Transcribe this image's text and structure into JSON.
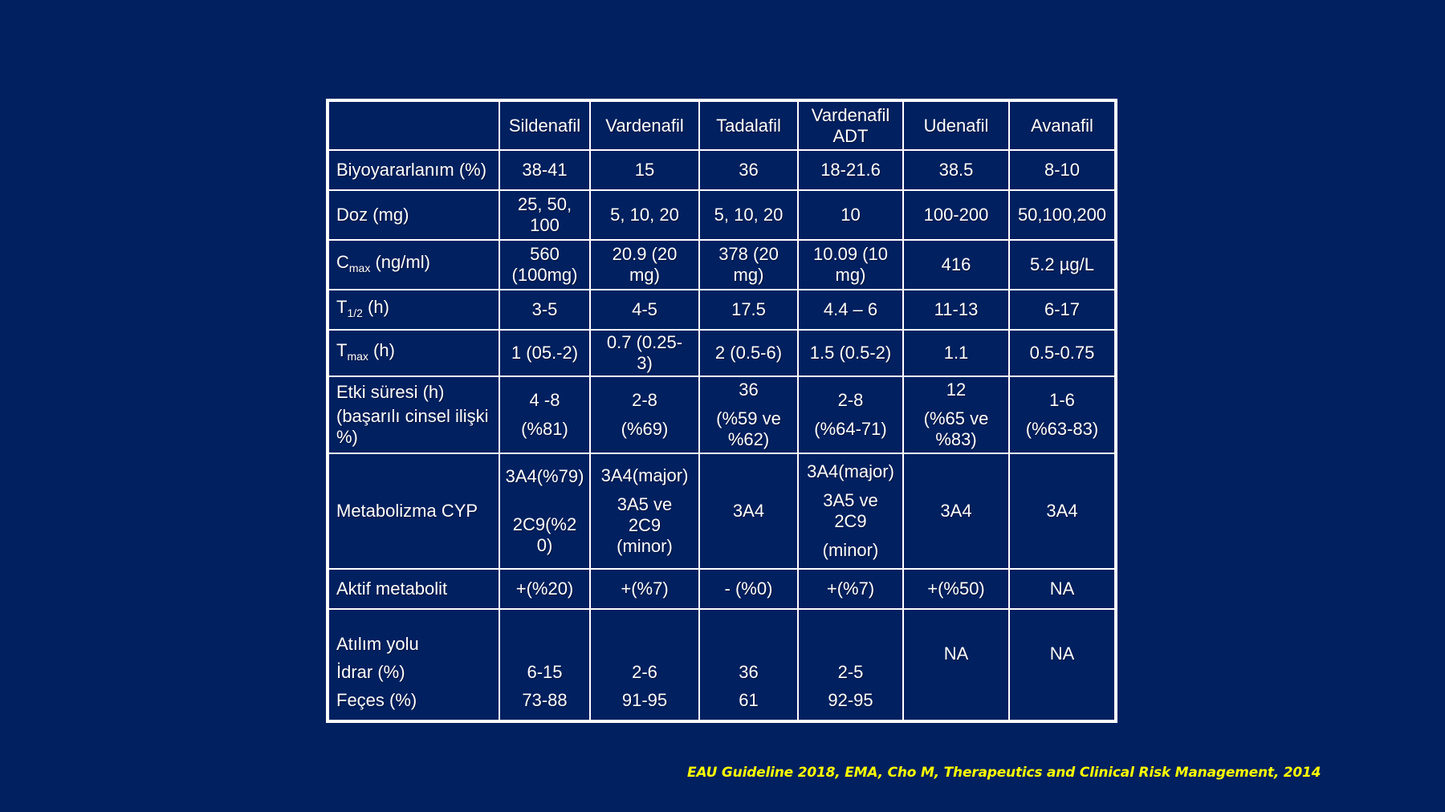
{
  "table": {
    "headers": [
      "",
      "Sildenafil",
      "Vardenafil",
      "Tadalafil",
      "Vardenafil ADT",
      "Udenafil",
      "Avanafil"
    ],
    "rows": {
      "bioavailability": {
        "label": "Biyoyararlanım (%)",
        "cells": [
          "38-41",
          "15",
          "36",
          "18-21.6",
          "38.5",
          "8-10"
        ]
      },
      "dose": {
        "label": "Doz (mg)",
        "cells": [
          "25, 50, 100",
          "5, 10, 20",
          "5, 10, 20",
          "10",
          "100-200",
          "50,100,200"
        ]
      },
      "cmax": {
        "label_main": "C",
        "label_sub": "max",
        "label_unit": " (ng/ml)",
        "cells": [
          "560 (100mg)",
          "20.9 (20 mg)",
          "378 (20 mg)",
          "10.09 (10 mg)",
          "416",
          "5.2 µg/L"
        ]
      },
      "thalf": {
        "label_main": "T",
        "label_sub": "1/2",
        "label_unit": " (h)",
        "cells": [
          "3-5",
          "4-5",
          "17.5",
          "4.4 – 6",
          "11-13",
          "6-17"
        ]
      },
      "tmax": {
        "label_main": "T",
        "label_sub": "max",
        "label_unit": " (h)",
        "cells": [
          "1 (05.-2)",
          "0.7 (0.25-3)",
          "2 (0.5-6)",
          "1.5 (0.5-2)",
          "1.1",
          "0.5-0.75"
        ]
      },
      "duration": {
        "label_line1": "Etki süresi (h)",
        "label_line2": " (başarılı cinsel ilişki %)",
        "cells": [
          [
            "4 -8",
            "(%81)"
          ],
          [
            "2-8",
            "(%69)"
          ],
          [
            "36",
            "(%59 ve %62)"
          ],
          [
            "2-8",
            "(%64-71)"
          ],
          [
            "12",
            "(%65 ve %83)"
          ],
          [
            "1-6",
            "(%63-83)"
          ]
        ]
      },
      "metabolism": {
        "label": "Metabolizma CYP",
        "cells": [
          [
            "3A4(%79)",
            "2C9(%20)"
          ],
          [
            "3A4(major)",
            "3A5 ve 2C9 (minor)"
          ],
          [
            "3A4"
          ],
          [
            "3A4(major)",
            "3A5 ve 2C9",
            "(minor)"
          ],
          [
            "3A4"
          ],
          [
            "3A4"
          ]
        ]
      },
      "active_metabolite": {
        "label": "Aktif metabolit",
        "cells": [
          "+(%20)",
          "+(%7)",
          "- (%0)",
          "+(%7)",
          "+(%50)",
          "NA"
        ]
      },
      "excretion": {
        "label_title": "Atılım yolu",
        "label_urine": "İdrar (%)",
        "label_feces": "Feçes (%)",
        "urine": [
          "6-15",
          "2-6",
          "36",
          "2-5",
          "NA",
          "NA"
        ],
        "feces": [
          "73-88",
          "91-95",
          "61",
          "92-95",
          "",
          ""
        ]
      }
    }
  },
  "citation": "EAU Guideline 2018, EMA, Cho M, Therapeutics and Clinical Risk Management, 2014"
}
